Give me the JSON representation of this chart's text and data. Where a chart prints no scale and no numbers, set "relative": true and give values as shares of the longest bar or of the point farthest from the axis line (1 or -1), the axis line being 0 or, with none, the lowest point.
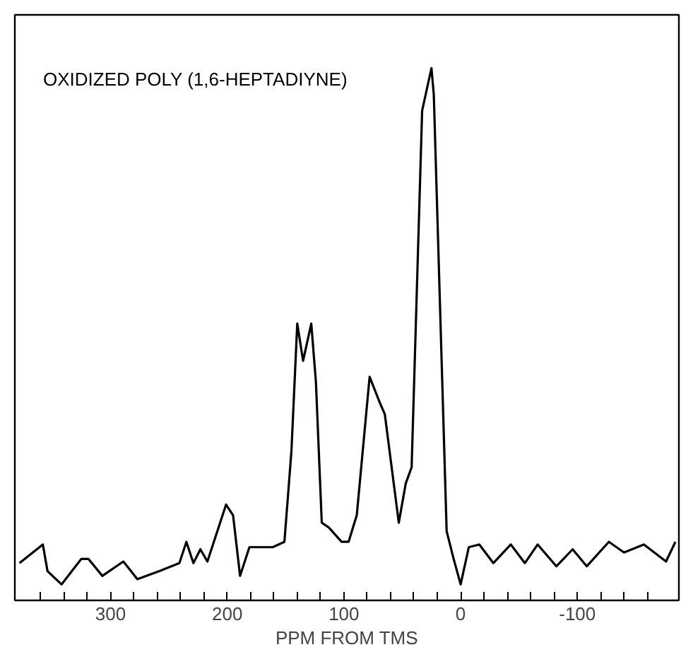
{
  "chart_data": {
    "type": "line",
    "title": "OXIDIZED POLY (1,6-HEPTADIYNE)",
    "xlabel": "PPM FROM TMS",
    "relative": true,
    "x": [
      378,
      358,
      354,
      342,
      325,
      319,
      307,
      289,
      277,
      258,
      241,
      235,
      229,
      223,
      217,
      201,
      195,
      189,
      181,
      161,
      151,
      145,
      140,
      135,
      128,
      124,
      119,
      113,
      102,
      96,
      89,
      78,
      69,
      65,
      53,
      47,
      42,
      33,
      25,
      23,
      12,
      6,
      0,
      -7,
      -16,
      -28,
      -43,
      -55,
      -66,
      -82,
      -96,
      -108,
      -127,
      -140,
      -157,
      -176,
      -184
    ],
    "series": [
      {
        "color": "#000000",
        "values": [
          0.07,
          0.105,
          0.055,
          0.03,
          0.078,
          0.078,
          0.046,
          0.073,
          0.04,
          0.055,
          0.07,
          0.11,
          0.07,
          0.096,
          0.073,
          0.18,
          0.16,
          0.046,
          0.1,
          0.1,
          0.11,
          0.28,
          0.52,
          0.45,
          0.52,
          0.41,
          0.146,
          0.137,
          0.11,
          0.11,
          0.16,
          0.42,
          0.37,
          0.35,
          0.146,
          0.22,
          0.25,
          0.92,
          1.0,
          0.95,
          0.13,
          0.078,
          0.03,
          0.1,
          0.105,
          0.07,
          0.105,
          0.07,
          0.105,
          0.064,
          0.096,
          0.064,
          0.11,
          0.09,
          0.105,
          0.073,
          0.11
        ]
      }
    ],
    "xlim": [
      382,
      -187
    ],
    "xticks": [
      {
        "value": 360,
        "label": null
      },
      {
        "value": 340,
        "label": null
      },
      {
        "value": 320,
        "label": null
      },
      300,
      {
        "value": 280,
        "label": null
      },
      {
        "value": 260,
        "label": null
      },
      {
        "value": 240,
        "label": null
      },
      {
        "value": 220,
        "label": null
      },
      200,
      {
        "value": 180,
        "label": null
      },
      {
        "value": 160,
        "label": null
      },
      {
        "value": 140,
        "label": null
      },
      {
        "value": 120,
        "label": null
      },
      100,
      {
        "value": 80,
        "label": null
      },
      {
        "value": 60,
        "label": null
      },
      {
        "value": 40,
        "label": null
      },
      {
        "value": 20,
        "label": null
      },
      0,
      {
        "value": -20,
        "label": null
      },
      {
        "value": -40,
        "label": null
      },
      {
        "value": -60,
        "label": null
      },
      {
        "value": -80,
        "label": null
      },
      -100,
      {
        "value": -120,
        "label": null
      },
      {
        "value": -140,
        "label": null
      },
      {
        "value": -160,
        "label": null
      }
    ],
    "grid": false,
    "line_style": "solid",
    "tick_labels": "x"
  }
}
